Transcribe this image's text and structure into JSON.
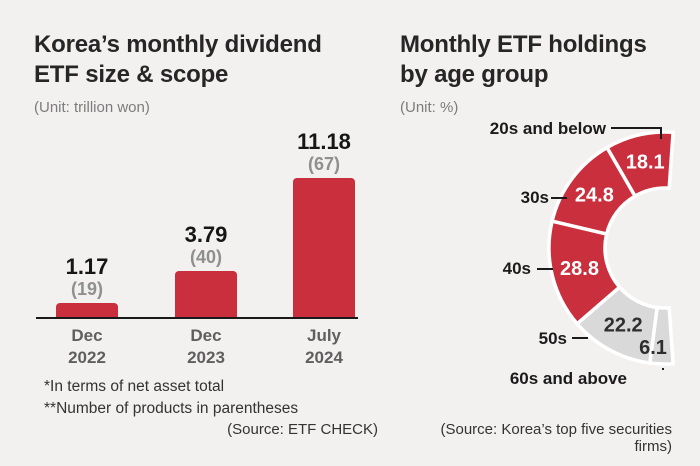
{
  "page": {
    "background_color": "#f2f1ef",
    "accent_red": "#ca2f3e",
    "slice_gray": "#d9d9d9"
  },
  "chart_data": [
    {
      "type": "bar",
      "title_lines": [
        "Korea’s monthly dividend",
        "ETF size & scope"
      ],
      "unit": "(Unit: trillion won)",
      "categories": [
        "Dec\n2022",
        "Dec\n2023",
        "July\n2024"
      ],
      "values": [
        1.17,
        3.79,
        11.18
      ],
      "counts_in_parentheses": [
        19,
        40,
        67
      ],
      "bar_color": "#ca2f3e",
      "ylim": [
        0,
        11.18
      ],
      "grid": false,
      "footnotes": [
        "*In terms of net asset total",
        "**Number of products in parentheses"
      ],
      "source": "(Source: ETF CHECK)"
    },
    {
      "type": "donut",
      "title_lines": [
        "Monthly ETF holdings",
        "by age group"
      ],
      "unit": "(Unit: %)",
      "slices": [
        {
          "label": "20s and below",
          "value": 18.1,
          "color": "#ca2f3e",
          "label_color": "#ffffff"
        },
        {
          "label": "30s",
          "value": 24.8,
          "color": "#ca2f3e",
          "label_color": "#ffffff"
        },
        {
          "label": "40s",
          "value": 28.8,
          "color": "#ca2f3e",
          "label_color": "#ffffff"
        },
        {
          "label": "50s",
          "value": 22.2,
          "color": "#d9d9d9",
          "label_color": "#2e2e2e"
        },
        {
          "label": "60s and above",
          "value": 6.1,
          "color": "#d9d9d9",
          "label_color": "#2e2e2e"
        }
      ],
      "layout_hint": {
        "opening": "right",
        "start_deg": 86,
        "total_deg": 188,
        "direction": "ccw"
      },
      "source": "(Source: Korea’s top five securities firms)"
    }
  ]
}
